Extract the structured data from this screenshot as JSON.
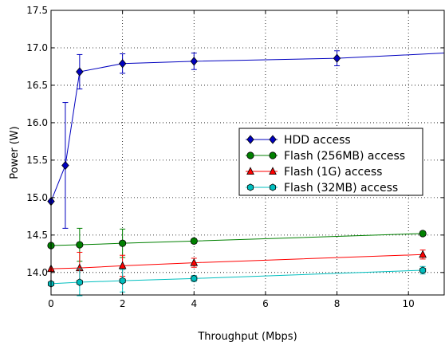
{
  "chart_data": {
    "type": "line",
    "title": "",
    "xlabel": "Throughput (Mbps)",
    "ylabel": "Power (W)",
    "xlim": [
      0,
      11
    ],
    "ylim": [
      13.7,
      17.5
    ],
    "xticks": [
      0,
      2,
      4,
      6,
      8,
      10
    ],
    "xtick_labels": [
      "0",
      "2",
      "4",
      "6",
      "8",
      "10"
    ],
    "yticks": [
      14.0,
      14.5,
      15.0,
      15.5,
      16.0,
      16.5,
      17.0,
      17.5
    ],
    "ytick_labels": [
      "14.0",
      "14.5",
      "15.0",
      "15.5",
      "16.0",
      "16.5",
      "17.0",
      "17.5"
    ],
    "grid": true,
    "grid_style": "dotted",
    "legend_position": "center-right",
    "series": [
      {
        "name": "HDD access",
        "color": "#0000bf",
        "marker": "diamond",
        "x": [
          0,
          0.4,
          0.8,
          2,
          4,
          8,
          11
        ],
        "y": [
          14.95,
          15.43,
          16.68,
          16.79,
          16.82,
          16.86,
          16.93
        ],
        "err": [
          null,
          0.84,
          0.23,
          0.13,
          0.11,
          0.1,
          null
        ]
      },
      {
        "name": "Flash (256MB) access",
        "color": "#008000",
        "marker": "circle",
        "x": [
          0,
          0.8,
          2,
          4,
          10.4
        ],
        "y": [
          14.36,
          14.37,
          14.39,
          14.42,
          14.52
        ],
        "err": [
          null,
          0.22,
          0.19,
          0.03,
          0.03
        ]
      },
      {
        "name": "Flash (1G) access",
        "color": "#ff0000",
        "marker": "triangle",
        "x": [
          0,
          0.8,
          2,
          4,
          10.4
        ],
        "y": [
          14.05,
          14.06,
          14.09,
          14.13,
          14.24
        ],
        "err": [
          null,
          0.21,
          0.14,
          0.06,
          0.06
        ]
      },
      {
        "name": "Flash (32MB) access",
        "color": "#00bfbf",
        "marker": "hexagon",
        "x": [
          0,
          0.8,
          2,
          4,
          10.4
        ],
        "y": [
          13.85,
          13.87,
          13.89,
          13.92,
          14.03
        ],
        "err": [
          null,
          0.18,
          0.15,
          0.04,
          0.05
        ]
      }
    ]
  }
}
